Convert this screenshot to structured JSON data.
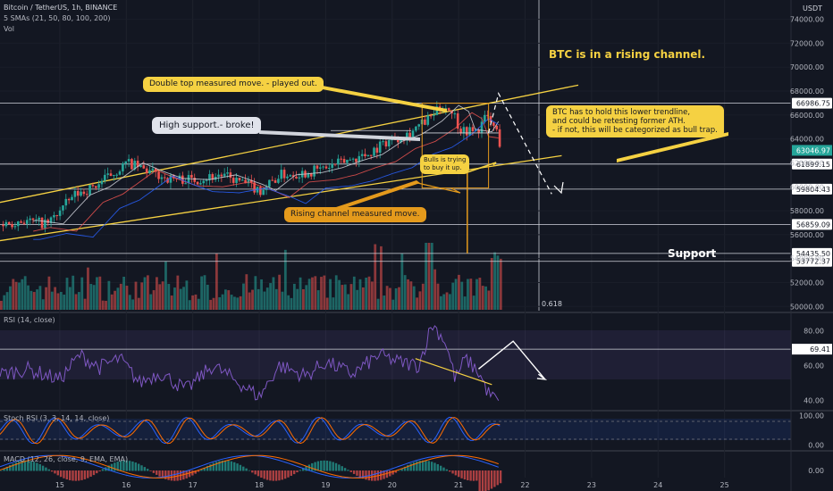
{
  "header": {
    "symbol": "Bitcoin / TetherUS, 1h, BINANCE",
    "indicator": "5 SMAs (21, 50, 80, 100, 200)",
    "vol": "Vol",
    "currency": "USDT"
  },
  "colors": {
    "bg": "#131722",
    "up": "#26a69a",
    "down": "#ef5350",
    "channel": "#f5d142",
    "annotation_yellow": "#f5d142",
    "annotation_orange": "#e49a1c",
    "rsi": "#7e57c2",
    "stoch_k": "#2962ff",
    "stoch_d": "#ff6d00",
    "current_price_tag": "#26a69a"
  },
  "chart_data": [
    {
      "type": "candlestick",
      "title": "Bitcoin / TetherUS, 1h, BINANCE",
      "x_ticks": [
        "15",
        "16",
        "17",
        "18",
        "19",
        "20",
        "21",
        "22",
        "23",
        "24",
        "25"
      ],
      "y_ticks": [
        74000,
        72000,
        70000,
        68000,
        66000,
        64000,
        62000,
        60000,
        58000,
        56000,
        54000,
        52000,
        50000
      ],
      "ylim": [
        49500,
        75500
      ],
      "close_path": [
        {
          "x": 14.0,
          "y": 56700
        },
        {
          "x": 14.4,
          "y": 57200
        },
        {
          "x": 14.8,
          "y": 56900
        },
        {
          "x": 15.2,
          "y": 59300
        },
        {
          "x": 15.5,
          "y": 60000
        },
        {
          "x": 15.8,
          "y": 61200
        },
        {
          "x": 16.0,
          "y": 62000
        },
        {
          "x": 16.3,
          "y": 61300
        },
        {
          "x": 16.6,
          "y": 60700
        },
        {
          "x": 17.0,
          "y": 60600
        },
        {
          "x": 17.4,
          "y": 61000
        },
        {
          "x": 17.8,
          "y": 60200
        },
        {
          "x": 18.0,
          "y": 59700
        },
        {
          "x": 18.3,
          "y": 61000
        },
        {
          "x": 18.7,
          "y": 61200
        },
        {
          "x": 19.0,
          "y": 61600
        },
        {
          "x": 19.3,
          "y": 62200
        },
        {
          "x": 19.6,
          "y": 62700
        },
        {
          "x": 19.9,
          "y": 63800
        },
        {
          "x": 20.2,
          "y": 64400
        },
        {
          "x": 20.5,
          "y": 65500
        },
        {
          "x": 20.75,
          "y": 66800
        },
        {
          "x": 20.9,
          "y": 66300
        },
        {
          "x": 21.0,
          "y": 64800
        },
        {
          "x": 21.25,
          "y": 64600
        },
        {
          "x": 21.4,
          "y": 65900
        },
        {
          "x": 21.55,
          "y": 64700
        },
        {
          "x": 21.63,
          "y": 63047
        }
      ],
      "price_levels": [
        {
          "value": 66986.75,
          "label": "66986.75"
        },
        {
          "value": 61899.15,
          "label": "61899.15"
        },
        {
          "value": 59804.43,
          "label": "59804.43"
        },
        {
          "value": 56859.09,
          "label": "56859.09"
        },
        {
          "value": 54435.5,
          "label": "54435.50"
        },
        {
          "value": 53772.37,
          "label": "53772.37"
        }
      ],
      "current_price": {
        "value": 63046.97,
        "label": "63046.97"
      },
      "fib_label": "0.618",
      "support_label": "Support"
    },
    {
      "type": "line",
      "title": "RSI (14, close)",
      "y_ticks": [
        80.0,
        60.0,
        40.0
      ],
      "ylim": [
        35,
        88
      ],
      "overbought": 69.41,
      "overbought_label": "69.41",
      "values": [
        {
          "x": 14.0,
          "y": 54
        },
        {
          "x": 14.5,
          "y": 58
        },
        {
          "x": 15.0,
          "y": 52
        },
        {
          "x": 15.3,
          "y": 66
        },
        {
          "x": 15.6,
          "y": 59
        },
        {
          "x": 15.9,
          "y": 64
        },
        {
          "x": 16.2,
          "y": 50
        },
        {
          "x": 16.5,
          "y": 56
        },
        {
          "x": 16.9,
          "y": 46
        },
        {
          "x": 17.3,
          "y": 60
        },
        {
          "x": 17.7,
          "y": 50
        },
        {
          "x": 18.0,
          "y": 42
        },
        {
          "x": 18.3,
          "y": 60
        },
        {
          "x": 18.7,
          "y": 54
        },
        {
          "x": 19.0,
          "y": 62
        },
        {
          "x": 19.4,
          "y": 55
        },
        {
          "x": 19.8,
          "y": 66
        },
        {
          "x": 20.1,
          "y": 62
        },
        {
          "x": 20.4,
          "y": 60
        },
        {
          "x": 20.6,
          "y": 84
        },
        {
          "x": 20.8,
          "y": 74
        },
        {
          "x": 20.95,
          "y": 52
        },
        {
          "x": 21.1,
          "y": 64
        },
        {
          "x": 21.3,
          "y": 56
        },
        {
          "x": 21.45,
          "y": 44
        },
        {
          "x": 21.6,
          "y": 39
        }
      ]
    },
    {
      "type": "line",
      "title": "Stoch RSI (3, 3, 14, 14, close)",
      "y_ticks": [
        100.0,
        0.0
      ],
      "ylim": [
        -10,
        110
      ]
    },
    {
      "type": "bar",
      "title": "MACD (12, 26, close, 9, EMA, EMA)",
      "y_ticks": [
        0.0
      ]
    }
  ],
  "annotations": {
    "rising_channel_title": "BTC is in a rising channel.",
    "double_top": "Double top measured move. - played out.",
    "high_support": "High support.- broke!",
    "bulls_trying": "Bulls is trying\nto buy it up.",
    "rising_measured": "Rising channel measured move.",
    "trendline_note": "BTC has to hold this lower trendline,\nand could be retesting former ATH.\n- if not, this will be categorized as bull trap."
  }
}
